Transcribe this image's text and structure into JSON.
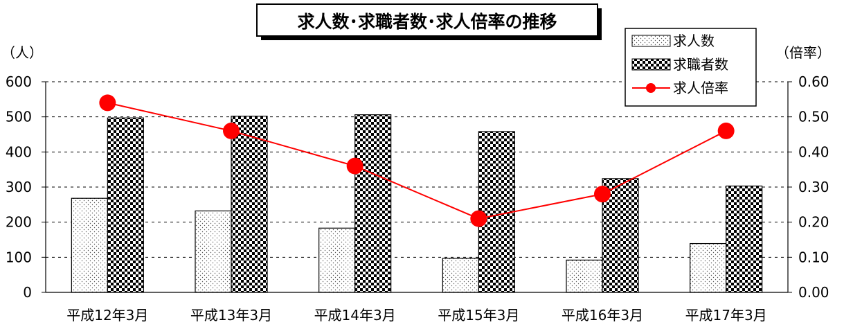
{
  "chart_data": {
    "type": "bar",
    "title": "求人数･求職者数･求人倍率の推移",
    "left_unit": "（人）",
    "right_unit": "（倍率）",
    "categories": [
      "平成12年3月",
      "平成13年3月",
      "平成14年3月",
      "平成15年3月",
      "平成16年3月",
      "平成17年3月"
    ],
    "series": [
      {
        "name": "求人数",
        "kind": "bar",
        "pattern": "dots",
        "axis": "left",
        "values": [
          268,
          232,
          183,
          97,
          92,
          139
        ]
      },
      {
        "name": "求職者数",
        "kind": "bar",
        "pattern": "checker",
        "axis": "left",
        "values": [
          497,
          502,
          506,
          458,
          324,
          303
        ]
      },
      {
        "name": "求人倍率",
        "kind": "line",
        "color": "#ff0000",
        "axis": "right",
        "values": [
          0.54,
          0.46,
          0.36,
          0.21,
          0.28,
          0.46
        ]
      }
    ],
    "y_left": {
      "min": 0,
      "max": 600,
      "step": 100,
      "tick_labels": [
        "0",
        "100",
        "200",
        "300",
        "400",
        "500",
        "600"
      ]
    },
    "y_right": {
      "min": 0,
      "max": 0.6,
      "step": 0.1,
      "tick_labels": [
        "0.00",
        "0.10",
        "0.20",
        "0.30",
        "0.40",
        "0.50",
        "0.60"
      ]
    },
    "grid": "dashed-horizontal",
    "legend_position": "top-right"
  }
}
